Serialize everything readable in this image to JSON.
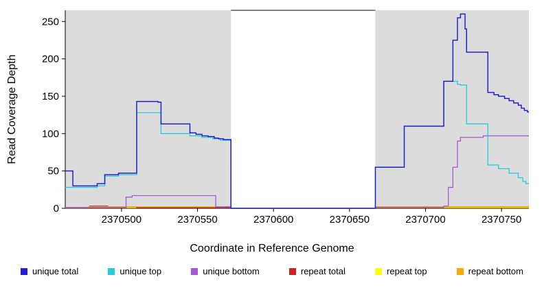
{
  "figure": {
    "background": "#ffffff",
    "shade_color": "#dcdcdc",
    "axis_color": "#000000"
  },
  "chart_data": {
    "type": "line",
    "step": true,
    "title": "",
    "xlabel": "Coordinate in Reference Genome",
    "ylabel": "Read Coverage Depth",
    "xlim": [
      2370463,
      2370768
    ],
    "ylim": [
      0,
      265
    ],
    "xticks": [
      2370500,
      2370550,
      2370600,
      2370650,
      2370700,
      2370750
    ],
    "yticks": [
      0,
      50,
      100,
      150,
      200,
      250
    ],
    "grid": false,
    "legend_position": "bottom",
    "shaded_regions": [
      {
        "x0": 2370463,
        "x1": 2370572
      },
      {
        "x0": 2370667,
        "x1": 2370768
      }
    ],
    "gap_region": {
      "x0": 2370572,
      "x1": 2370667
    },
    "series": [
      {
        "name": "repeat top",
        "color": "#ffff00",
        "points": [
          [
            2370463,
            1
          ],
          [
            2370572,
            0
          ],
          [
            2370667,
            1
          ]
        ]
      },
      {
        "name": "repeat total",
        "color": "#cc2222",
        "points": [
          [
            2370463,
            1
          ],
          [
            2370479,
            3
          ],
          [
            2370491,
            2
          ],
          [
            2370510,
            1
          ],
          [
            2370572,
            0
          ],
          [
            2370667,
            2
          ]
        ]
      },
      {
        "name": "repeat bottom",
        "color": "#ffa500",
        "points": [
          [
            2370463,
            1
          ],
          [
            2370478,
            2
          ],
          [
            2370572,
            0
          ],
          [
            2370667,
            2
          ]
        ]
      },
      {
        "name": "unique bottom",
        "color": "#a35bcf",
        "points": [
          [
            2370463,
            1
          ],
          [
            2370503,
            15
          ],
          [
            2370507,
            17
          ],
          [
            2370562,
            2
          ],
          [
            2370572,
            0
          ],
          [
            2370667,
            1
          ],
          [
            2370712,
            3
          ],
          [
            2370715,
            28
          ],
          [
            2370718,
            55
          ],
          [
            2370721,
            90
          ],
          [
            2370723,
            95
          ],
          [
            2370738,
            97
          ]
        ]
      },
      {
        "name": "unique top",
        "color": "#22ccdd",
        "points": [
          [
            2370463,
            28
          ],
          [
            2370484,
            30
          ],
          [
            2370489,
            43
          ],
          [
            2370498,
            45
          ],
          [
            2370510,
            128
          ],
          [
            2370526,
            100
          ],
          [
            2370545,
            97
          ],
          [
            2370553,
            95
          ],
          [
            2370560,
            93
          ],
          [
            2370565,
            91
          ],
          [
            2370572,
            0
          ],
          [
            2370667,
            55
          ],
          [
            2370686,
            110
          ],
          [
            2370712,
            170
          ],
          [
            2370721,
            166
          ],
          [
            2370723,
            165
          ],
          [
            2370727,
            113
          ],
          [
            2370741,
            58
          ],
          [
            2370748,
            53
          ],
          [
            2370755,
            47
          ],
          [
            2370761,
            41
          ],
          [
            2370764,
            36
          ],
          [
            2370766,
            33
          ]
        ]
      },
      {
        "name": "unique total",
        "color": "#2222cc",
        "points": [
          [
            2370463,
            50
          ],
          [
            2370468,
            30
          ],
          [
            2370484,
            33
          ],
          [
            2370489,
            45
          ],
          [
            2370498,
            47
          ],
          [
            2370510,
            143
          ],
          [
            2370524,
            142
          ],
          [
            2370526,
            113
          ],
          [
            2370545,
            101
          ],
          [
            2370549,
            99
          ],
          [
            2370553,
            97
          ],
          [
            2370557,
            96
          ],
          [
            2370561,
            94
          ],
          [
            2370564,
            93
          ],
          [
            2370567,
            92
          ],
          [
            2370572,
            0
          ],
          [
            2370667,
            55
          ],
          [
            2370686,
            110
          ],
          [
            2370712,
            170
          ],
          [
            2370718,
            225
          ],
          [
            2370721,
            255
          ],
          [
            2370723,
            260
          ],
          [
            2370726,
            240
          ],
          [
            2370727,
            209
          ],
          [
            2370741,
            155
          ],
          [
            2370745,
            152
          ],
          [
            2370748,
            150
          ],
          [
            2370752,
            147
          ],
          [
            2370755,
            144
          ],
          [
            2370758,
            141
          ],
          [
            2370761,
            138
          ],
          [
            2370763,
            134
          ],
          [
            2370765,
            131
          ],
          [
            2370767,
            129
          ]
        ]
      }
    ]
  },
  "legend": {
    "items": [
      {
        "label": "unique total",
        "color": "#2222cc"
      },
      {
        "label": "unique top",
        "color": "#22ccdd"
      },
      {
        "label": "unique bottom",
        "color": "#a35bcf"
      },
      {
        "label": "repeat total",
        "color": "#cc2222"
      },
      {
        "label": "repeat top",
        "color": "#ffff00"
      },
      {
        "label": "repeat bottom",
        "color": "#ffa500"
      }
    ]
  }
}
